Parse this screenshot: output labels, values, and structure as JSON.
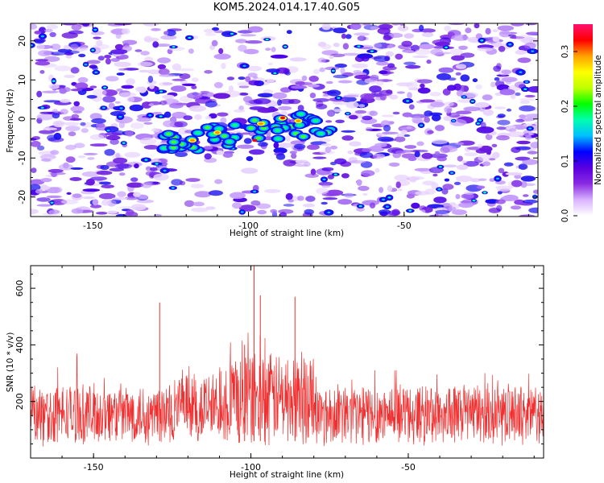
{
  "title": "KOM5.2024.014.17.40.G05",
  "chart_data": [
    {
      "type": "heatmap",
      "title": "KOM5.2024.014.17.40.G05",
      "xlabel": "Height of straight line (km)",
      "ylabel": "Frequency (Hz)",
      "xlim": [
        -170,
        -7
      ],
      "ylim": [
        -25,
        24.5
      ],
      "xticks": [
        -150,
        -100,
        -50
      ],
      "yticks": [
        -20,
        -10,
        0,
        10,
        20
      ],
      "colorbar": {
        "label": "Normalized spectral amplitude",
        "range": [
          0.0,
          0.35
        ],
        "ticks": [
          0.0,
          0.1,
          0.2,
          0.3
        ],
        "colors": [
          "#ffffff",
          "#d9b3ff",
          "#8a2be2",
          "#5a00e0",
          "#0000ff",
          "#00bfff",
          "#00ffb0",
          "#00ff00",
          "#bfff00",
          "#ffff00",
          "#ffa000",
          "#ff0000",
          "#ff1070"
        ]
      },
      "features": [
        {
          "name": "signal streak",
          "x_range": [
            -128,
            -72
          ],
          "y_at_start": -6.5,
          "y_at_end": -0.5,
          "peak_amplitude": 0.33
        }
      ]
    },
    {
      "type": "line",
      "xlabel": "Height of straight line (km)",
      "ylabel": "SNR (10 * v/v)",
      "xlim": [
        -170,
        -7
      ],
      "ylim": [
        0,
        680
      ],
      "xticks": [
        -150,
        -100,
        -50
      ],
      "yticks": [
        200,
        400,
        600
      ],
      "color": "#f03030",
      "baseline_range": [
        60,
        260
      ],
      "peaks": [
        {
          "x": -129,
          "y": 550
        },
        {
          "x": -99,
          "y": 680
        },
        {
          "x": -97,
          "y": 575
        },
        {
          "x": -86,
          "y": 570
        },
        {
          "x": -102,
          "y": 400
        }
      ]
    }
  ]
}
